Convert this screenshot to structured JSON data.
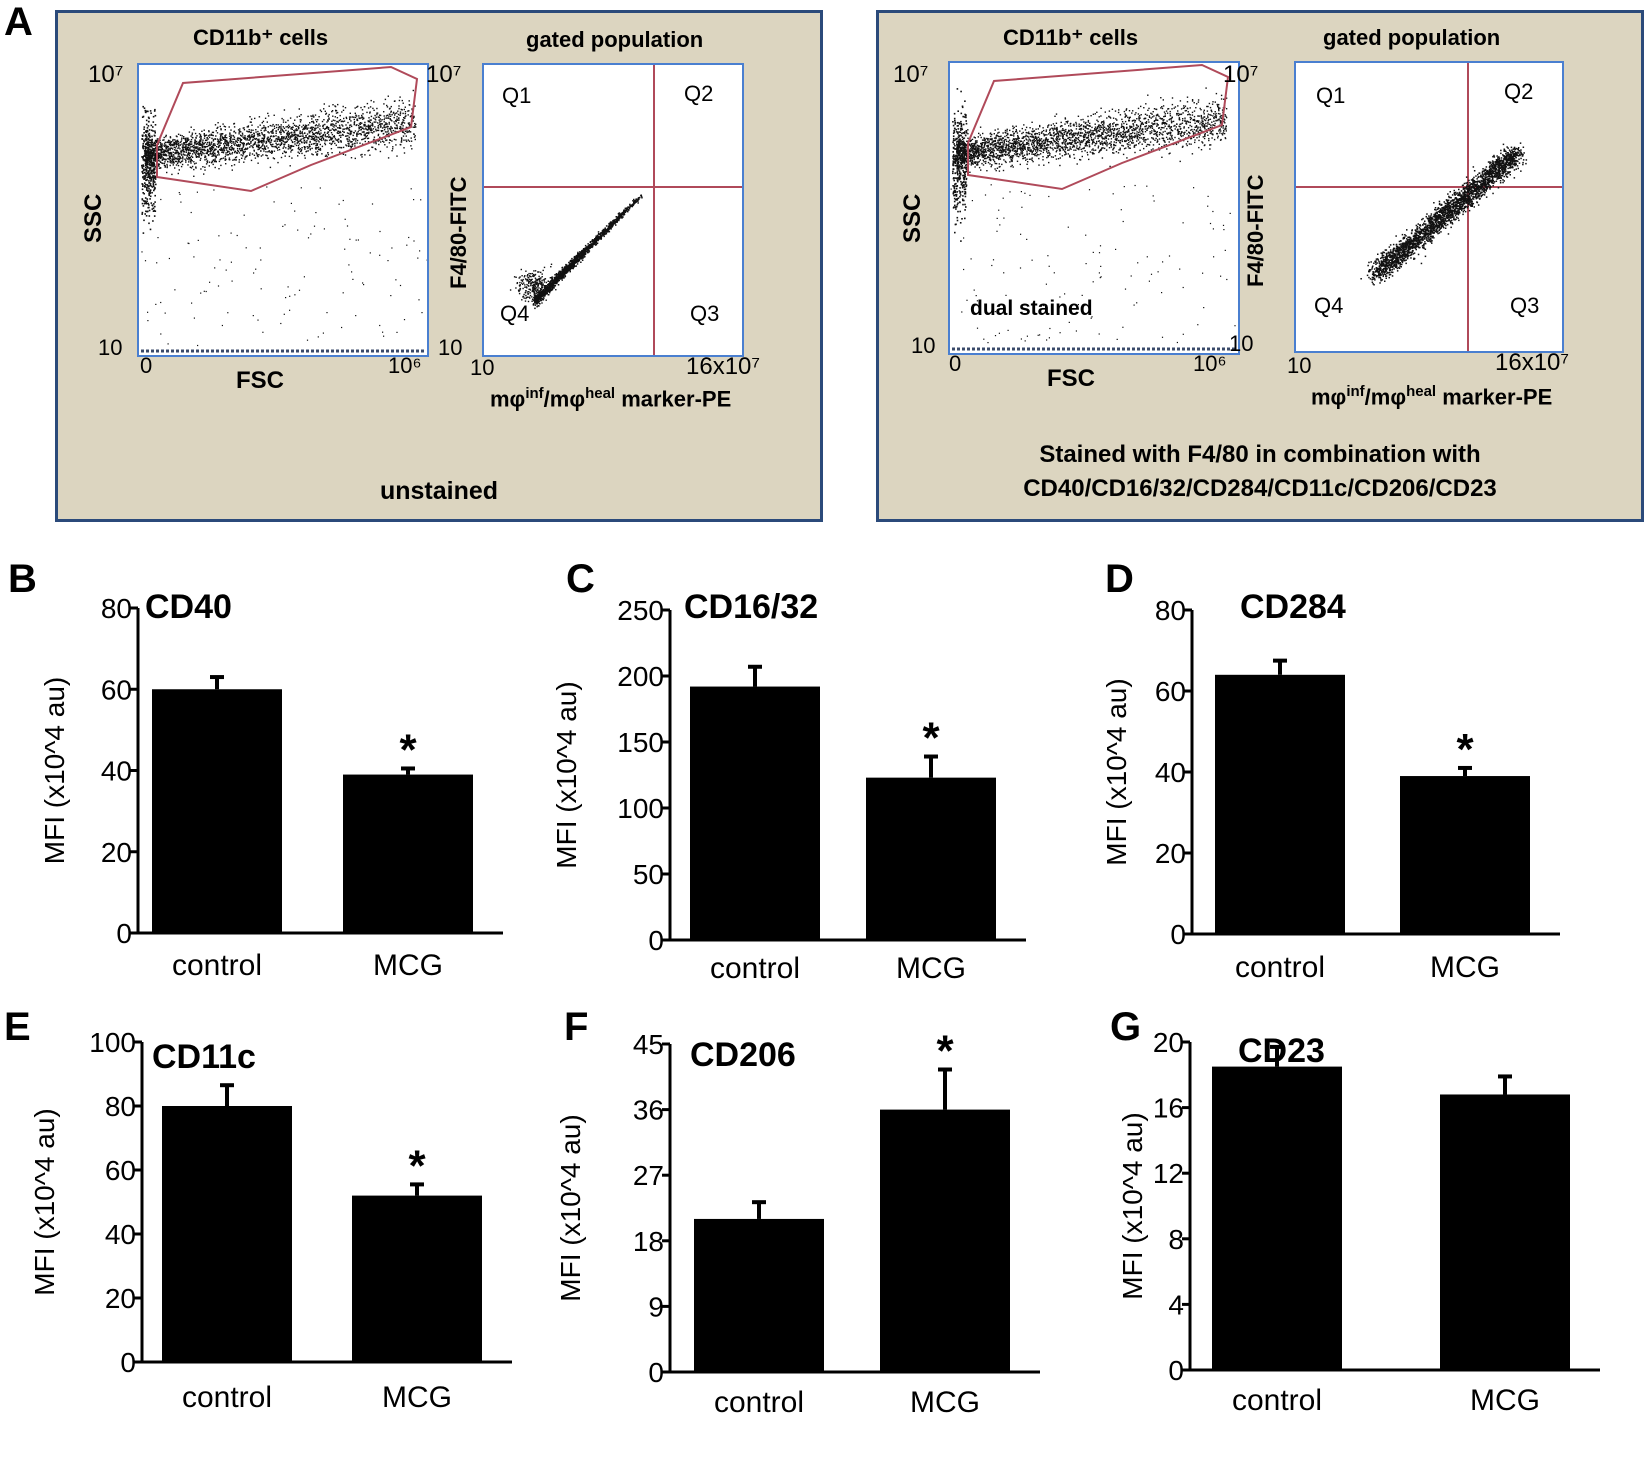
{
  "panel_a": {
    "letter": "A",
    "left_box": {
      "title_scatter": "CD11b⁺ cells",
      "title_gated": "gated population",
      "caption": "unstained",
      "ssc_label": "SSC",
      "fsc_label": "FSC",
      "y_top": "10⁷",
      "y_bottom": "10",
      "x_left": "0",
      "x_right": "10⁶",
      "gated_y_label": "F4/80-FITC",
      "gated_x_label": "mφ^inf/mφ^heal marker-PE",
      "gated_y_top": "10⁷",
      "gated_y_bottom": "10",
      "gated_x_left": "10",
      "gated_x_right": "16x10⁷",
      "q1": "Q1",
      "q2": "Q2",
      "q3": "Q3",
      "q4": "Q4"
    },
    "right_box": {
      "title_scatter": "CD11b⁺ cells",
      "title_gated": "gated population",
      "inner_label": "dual stained",
      "caption_line1": "Stained with F4/80 in combination with",
      "caption_line2": "CD40/CD16/32/CD284/CD11c/CD206/CD23",
      "ssc_label": "SSC",
      "fsc_label": "FSC",
      "y_top": "10⁷",
      "y_bottom": "10",
      "x_left": "0",
      "x_right": "10⁶",
      "gated_y_label": "F4/80-FITC",
      "gated_x_label": "mφ^inf/mφ^heal marker-PE",
      "gated_y_top": "10⁷",
      "gated_y_bottom": "10",
      "gated_x_left": "10",
      "gated_x_right": "16x10⁷",
      "q1": "Q1",
      "q2": "Q2",
      "q3": "Q3",
      "q4": "Q4"
    },
    "colors": {
      "box_bg": "#dcd5c0",
      "box_border": "#2b4a7a",
      "plot_border": "#4a7fd0",
      "gate": "#b04a5a"
    }
  },
  "chart_data": [
    {
      "panel": "B",
      "type": "bar",
      "title": "CD40",
      "categories": [
        "control",
        "MCG"
      ],
      "values": [
        60,
        39
      ],
      "errors": [
        3,
        1.5
      ],
      "significant": [
        false,
        true
      ],
      "ylabel": "MFI (x10^4 au)",
      "ylim": [
        0,
        80
      ],
      "yticks": [
        0,
        20,
        40,
        60,
        80
      ]
    },
    {
      "panel": "C",
      "type": "bar",
      "title": "CD16/32",
      "categories": [
        "control",
        "MCG"
      ],
      "values": [
        192,
        123
      ],
      "errors": [
        15,
        16
      ],
      "significant": [
        false,
        true
      ],
      "ylabel": "MFI (x10^4 au)",
      "ylim": [
        0,
        250
      ],
      "yticks": [
        0,
        50,
        100,
        150,
        200,
        250
      ]
    },
    {
      "panel": "D",
      "type": "bar",
      "title": "CD284",
      "categories": [
        "control",
        "MCG"
      ],
      "values": [
        64,
        39
      ],
      "errors": [
        3.5,
        2
      ],
      "significant": [
        false,
        true
      ],
      "ylabel": "MFI (x10^4 au)",
      "ylim": [
        0,
        80
      ],
      "yticks": [
        0,
        20,
        40,
        60,
        80
      ]
    },
    {
      "panel": "E",
      "type": "bar",
      "title": "CD11c",
      "categories": [
        "control",
        "MCG"
      ],
      "values": [
        80,
        52
      ],
      "errors": [
        6.5,
        3.5
      ],
      "significant": [
        false,
        true
      ],
      "ylabel": "MFI (x10^4 au)",
      "ylim": [
        0,
        100
      ],
      "yticks": [
        0,
        20,
        40,
        60,
        80,
        100
      ]
    },
    {
      "panel": "F",
      "type": "bar",
      "title": "CD206",
      "categories": [
        "control",
        "MCG"
      ],
      "values": [
        21,
        36
      ],
      "errors": [
        2.3,
        5.5
      ],
      "significant": [
        false,
        true
      ],
      "ylabel": "MFI (x10^4 au)",
      "ylim": [
        0,
        45
      ],
      "yticks": [
        0,
        9,
        18,
        27,
        36,
        45
      ]
    },
    {
      "panel": "G",
      "type": "bar",
      "title": "CD23",
      "categories": [
        "control",
        "MCG"
      ],
      "values": [
        18.5,
        16.8
      ],
      "errors": [
        1.2,
        1.1
      ],
      "significant": [
        false,
        false
      ],
      "ylabel": "MFI (x10^4 au)",
      "ylim": [
        0,
        20
      ],
      "yticks": [
        0,
        4,
        8,
        12,
        16,
        20
      ]
    }
  ]
}
